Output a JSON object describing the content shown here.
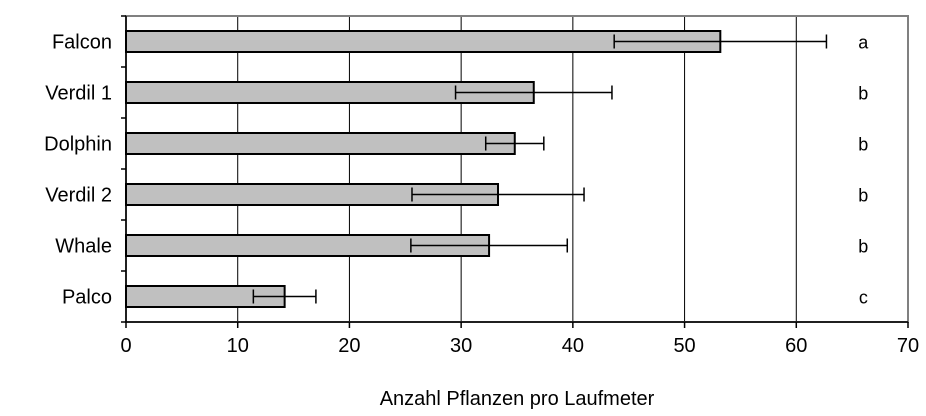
{
  "chart_data": {
    "type": "bar",
    "orientation": "horizontal",
    "categories": [
      "Falcon",
      "Verdil  1",
      "Dolphin",
      "Verdil  2",
      "Whale",
      "Palco"
    ],
    "values": [
      53.2,
      36.5,
      34.8,
      33.3,
      32.5,
      14.2
    ],
    "errors": [
      9.5,
      7.0,
      2.6,
      7.7,
      7.0,
      2.8
    ],
    "significance_letters": [
      "a",
      "b",
      "b",
      "b",
      "b",
      "c"
    ],
    "xlabel": "Anzahl Pflanzen pro Laufmeter",
    "xlim": [
      0,
      70
    ],
    "xticks": [
      0,
      10,
      20,
      30,
      40,
      50,
      60,
      70
    ],
    "grid": "vertical",
    "bar_color": "#c0c0c0",
    "legend": "none"
  }
}
